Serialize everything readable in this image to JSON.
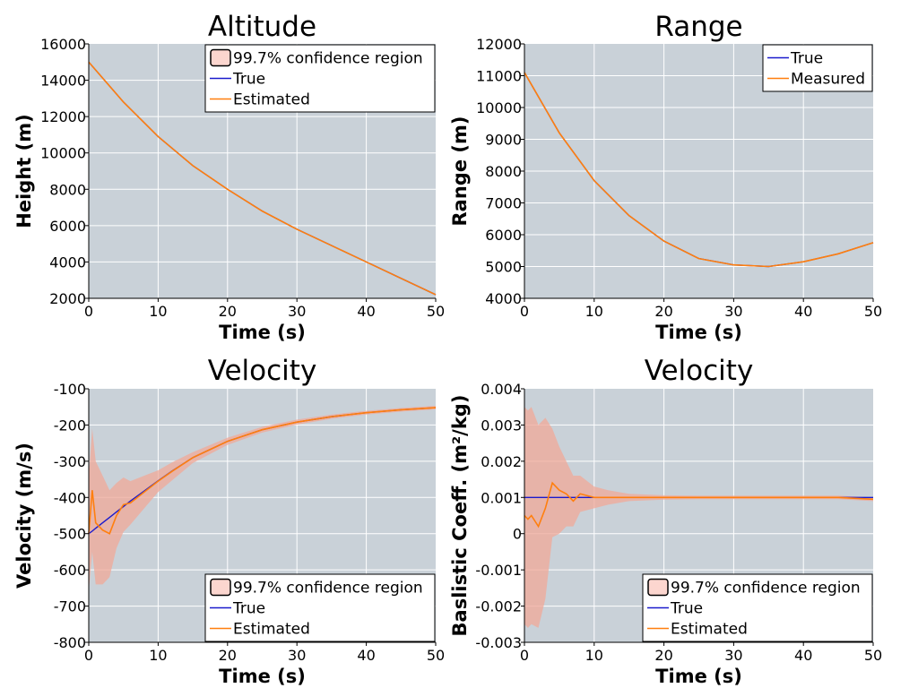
{
  "colors": {
    "background": "#c9d1d8",
    "grid": "#ffffff",
    "true_line": "#1a1acc",
    "estimate_line": "#ff7f0e",
    "confidence_fill": "#f0a898",
    "confidence_swatch": "#fcd6cf"
  },
  "chart_data": [
    {
      "type": "line",
      "title": "Altitude",
      "xlabel": "Time (s)",
      "ylabel": "Height (m)",
      "xlim": [
        0,
        50
      ],
      "ylim": [
        2000,
        16000
      ],
      "xticks": [
        "0",
        "10",
        "20",
        "30",
        "40",
        "50"
      ],
      "yticks": [
        "2000",
        "4000",
        "6000",
        "8000",
        "10000",
        "12000",
        "14000",
        "16000"
      ],
      "legend_position": "top-right",
      "legend": [
        "99.7% confidence region",
        "True",
        "Estimated"
      ],
      "x": [
        0,
        5,
        10,
        15,
        20,
        25,
        30,
        35,
        40,
        45,
        50
      ],
      "series": [
        {
          "name": "True",
          "values": [
            15000,
            12800,
            10900,
            9300,
            8000,
            6800,
            5800,
            4900,
            4000,
            3100,
            2200
          ]
        },
        {
          "name": "Estimated",
          "values": [
            15000,
            12800,
            10900,
            9300,
            8000,
            6800,
            5800,
            4900,
            4000,
            3100,
            2200
          ]
        }
      ],
      "confidence_halfwidth": [
        20,
        15,
        10,
        10,
        10,
        10,
        10,
        10,
        10,
        10,
        10
      ]
    },
    {
      "type": "line",
      "title": "Range",
      "xlabel": "Time (s)",
      "ylabel": "Range (m)",
      "xlim": [
        0,
        50
      ],
      "ylim": [
        4000,
        12000
      ],
      "xticks": [
        "0",
        "10",
        "20",
        "30",
        "40",
        "50"
      ],
      "yticks": [
        "4000",
        "5000",
        "6000",
        "7000",
        "8000",
        "9000",
        "10000",
        "11000",
        "12000"
      ],
      "legend_position": "top-right",
      "legend": [
        "True",
        "Measured"
      ],
      "x": [
        0,
        5,
        10,
        15,
        20,
        25,
        30,
        35,
        40,
        45,
        50
      ],
      "series": [
        {
          "name": "True",
          "values": [
            11100,
            9200,
            7700,
            6600,
            5800,
            5250,
            5050,
            5000,
            5150,
            5400,
            5750
          ]
        },
        {
          "name": "Measured",
          "values": [
            11100,
            9200,
            7700,
            6600,
            5800,
            5250,
            5050,
            5000,
            5150,
            5400,
            5750
          ]
        }
      ]
    },
    {
      "type": "line",
      "title": "Velocity",
      "xlabel": "Time (s)",
      "ylabel": "Velocity (m/s)",
      "xlim": [
        0,
        50
      ],
      "ylim": [
        -800,
        -100
      ],
      "xticks": [
        "0",
        "10",
        "20",
        "30",
        "40",
        "50"
      ],
      "yticks": [
        "-800",
        "-700",
        "-600",
        "-500",
        "-400",
        "-300",
        "-200",
        "-100"
      ],
      "legend_position": "bottom-right",
      "legend": [
        "99.7% confidence region",
        "True",
        "Estimated"
      ],
      "x": [
        0,
        0.5,
        1,
        2,
        3,
        4,
        5,
        6,
        8,
        10,
        12,
        15,
        20,
        25,
        30,
        35,
        40,
        45,
        50
      ],
      "series": [
        {
          "name": "True",
          "values": [
            -500,
            -493,
            -485,
            -470,
            -455,
            -440,
            -425,
            -410,
            -382,
            -354,
            -327,
            -290,
            -245,
            -213,
            -192,
            -177,
            -166,
            -158,
            -152
          ]
        },
        {
          "name": "Estimated",
          "values": [
            -500,
            -380,
            -470,
            -490,
            -500,
            -450,
            -420,
            -415,
            -385,
            -355,
            -328,
            -290,
            -245,
            -213,
            -192,
            -177,
            -166,
            -158,
            -152
          ]
        }
      ],
      "confidence_halfwidth": [
        160,
        170,
        170,
        150,
        120,
        90,
        75,
        60,
        45,
        30,
        25,
        15,
        10,
        8,
        7,
        6,
        5,
        5,
        5
      ]
    },
    {
      "type": "line",
      "title": "Velocity",
      "xlabel": "Time (s)",
      "ylabel": "Baslistic Coeff. (m²/kg)",
      "xlim": [
        0,
        50
      ],
      "ylim": [
        -0.003,
        0.004
      ],
      "xticks": [
        "0",
        "10",
        "20",
        "30",
        "40",
        "50"
      ],
      "yticks": [
        "-0.003",
        "-0.002",
        "-0.001",
        "0",
        "0.001",
        "0.002",
        "0.003",
        "0.004"
      ],
      "legend_position": "bottom-right",
      "legend": [
        "99.7% confidence region",
        "True",
        "Estimated"
      ],
      "x": [
        0,
        0.5,
        1,
        2,
        3,
        4,
        5,
        6,
        7,
        8,
        10,
        12,
        15,
        20,
        25,
        30,
        35,
        40,
        45,
        50
      ],
      "series": [
        {
          "name": "True",
          "values": [
            0.001,
            0.001,
            0.001,
            0.001,
            0.001,
            0.001,
            0.001,
            0.001,
            0.001,
            0.001,
            0.001,
            0.001,
            0.001,
            0.001,
            0.001,
            0.001,
            0.001,
            0.001,
            0.001,
            0.001
          ]
        },
        {
          "name": "Estimated",
          "values": [
            0.0005,
            0.0004,
            0.0005,
            0.0002,
            0.0007,
            0.0014,
            0.0012,
            0.0011,
            0.0009,
            0.0011,
            0.001,
            0.001,
            0.001,
            0.001,
            0.001,
            0.001,
            0.001,
            0.001,
            0.001,
            0.00095
          ]
        }
      ],
      "confidence_halfwidth": [
        0.003,
        0.003,
        0.003,
        0.0028,
        0.0025,
        0.0015,
        0.0012,
        0.0009,
        0.0007,
        0.0005,
        0.0003,
        0.0002,
        0.0001,
        6e-05,
        5e-05,
        5e-05,
        5e-05,
        5e-05,
        5e-05,
        5e-05
      ]
    }
  ]
}
